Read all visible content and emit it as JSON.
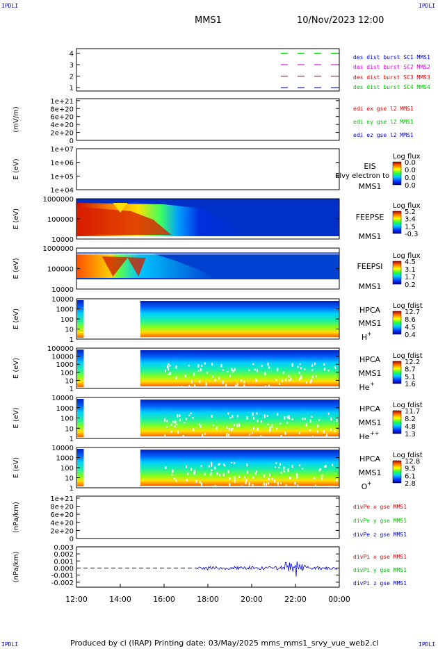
{
  "corner_left": "IPDLI",
  "corner_right": "IPDLI",
  "corner_bottom_left": "IPDLI",
  "corner_bottom_right": "IPDLI",
  "header": {
    "spacecraft": "MMS1",
    "datetime": "10/Nov/2023 12:00"
  },
  "footer": {
    "text": "Produced by cl (IRAP)   Printing date: 03/May/2025   mms_mms1_srvy_vue_web2.cl"
  },
  "colors": {
    "red": "#e00000",
    "green": "#00c000",
    "magenta": "#e000e0",
    "blue": "#0000e0",
    "black": "#000000"
  },
  "chart_data": [
    {
      "type": "line",
      "id": "des-dist-burst",
      "ylabel": "",
      "yticks": [
        "1",
        "2",
        "3",
        "4"
      ],
      "ylim": [
        0.7,
        4.4
      ],
      "series": [
        {
          "name": "des dist burst SC1 MMS1",
          "color": "#00c000",
          "y": 4,
          "x_start": "21:20",
          "x_end": "00:00"
        },
        {
          "name": "des dist burst SC2 MMS2",
          "color": "#e000e0",
          "y": 3,
          "x_start": "21:20",
          "x_end": "00:00"
        },
        {
          "name": "des dist burst SC3 MMS3",
          "color": "#e00000",
          "y": 2,
          "x_start": "21:20",
          "x_end": "00:00"
        },
        {
          "name": "des dist burst SC4 MMS4",
          "color": "#0000e0",
          "y": 1,
          "x_start": "21:20",
          "x_end": "00:00"
        }
      ]
    },
    {
      "type": "line",
      "id": "edi-e-gse",
      "ylabel": "(mV/m)",
      "yticks": [
        "0",
        "2e+20",
        "4e+20",
        "6e+20",
        "8e+20",
        "1e+21"
      ],
      "ylim": [
        0,
        1.05e+21
      ],
      "series": [
        {
          "name": "edi ex gse l2 MMS1",
          "color": "#e00000"
        },
        {
          "name": "edi ey gse l2 MMS1",
          "color": "#00c000"
        },
        {
          "name": "edi ez gse l2 MMS1",
          "color": "#0000e0"
        }
      ]
    },
    {
      "type": "heatmap",
      "id": "eis",
      "ylabel": "E (eV)",
      "yticks": [
        "1e+04",
        "1e+05",
        "1e+06",
        "1e+07"
      ],
      "labels": [
        "EIS",
        "MMS1"
      ],
      "overlay_label": "Elvy electron to",
      "colorbar": {
        "title": "Log flux",
        "ticks": [
          "0.0",
          "0.0",
          "0.0",
          "0.0"
        ]
      }
    },
    {
      "type": "heatmap",
      "id": "feepse",
      "ylabel": "E (eV)",
      "yticks": [
        "10000",
        "100000",
        "1000000"
      ],
      "labels": [
        "FEEPSE",
        "MMS1"
      ],
      "colorbar": {
        "title": "Log flux",
        "ticks": [
          "5.2",
          "3.4",
          "1.5",
          "-0.3"
        ]
      }
    },
    {
      "type": "heatmap",
      "id": "feepsi",
      "ylabel": "E (eV)",
      "yticks": [
        "10000",
        "100000",
        "1000000"
      ],
      "labels": [
        "FEEPSI",
        "MMS1"
      ],
      "colorbar": {
        "title": "Log flux",
        "ticks": [
          "4.5",
          "3.1",
          "1.7",
          "0.2"
        ]
      }
    },
    {
      "type": "heatmap",
      "id": "hpca-h",
      "ylabel": "E (eV)",
      "yticks": [
        "1",
        "10",
        "100",
        "1000",
        "10000"
      ],
      "labels": [
        "HPCA",
        "MMS1"
      ],
      "species": "H",
      "species_sup": "+",
      "colorbar": {
        "title": "Log fdist",
        "ticks": [
          "12.7",
          "8.6",
          "4.5",
          "0.4"
        ]
      }
    },
    {
      "type": "heatmap",
      "id": "hpca-he",
      "ylabel": "E (eV)",
      "yticks": [
        "1",
        "10",
        "100",
        "1000",
        "10000",
        "100000"
      ],
      "labels": [
        "HPCA",
        "MMS1"
      ],
      "species": "He",
      "species_sup": "+",
      "colorbar": {
        "title": "Log fdist",
        "ticks": [
          "12.2",
          "8.7",
          "5.1",
          "1.6"
        ]
      }
    },
    {
      "type": "heatmap",
      "id": "hpca-hepp",
      "ylabel": "E (eV)",
      "yticks": [
        "1",
        "10",
        "100",
        "1000",
        "10000"
      ],
      "labels": [
        "HPCA",
        "MMS1"
      ],
      "species": "He",
      "species_sup": "++",
      "colorbar": {
        "title": "Log fdist",
        "ticks": [
          "11.7",
          "8.2",
          "4.8",
          "1.3"
        ]
      }
    },
    {
      "type": "heatmap",
      "id": "hpca-o",
      "ylabel": "E (eV)",
      "yticks": [
        "1",
        "10",
        "100",
        "1000",
        "10000"
      ],
      "labels": [
        "HPCA",
        "MMS1"
      ],
      "species": "O",
      "species_sup": "+",
      "colorbar": {
        "title": "Log fdist",
        "ticks": [
          "12.8",
          "9.5",
          "6.1",
          "2.8"
        ]
      }
    },
    {
      "type": "line",
      "id": "divpe",
      "ylabel": "(nPa/km)",
      "yticks": [
        "0",
        "2e+20",
        "4e+20",
        "6e+20",
        "8e+20",
        "1e+21"
      ],
      "ylim": [
        0,
        1.05e+21
      ],
      "series": [
        {
          "name": "divPe x gse MMS1",
          "color": "#e00000"
        },
        {
          "name": "divPe y gse MMS1",
          "color": "#00c000"
        },
        {
          "name": "divPe z gse MMS1",
          "color": "#0000e0"
        }
      ]
    },
    {
      "type": "line",
      "id": "divpi",
      "ylabel": "(nPa/km)",
      "yticks": [
        "-0.002",
        "-0.001",
        "0.000",
        "0.001",
        "0.002",
        "0.003"
      ],
      "ylim": [
        -0.0027,
        0.003
      ],
      "series": [
        {
          "name": "divPi x gse MMS1",
          "color": "#e00000"
        },
        {
          "name": "divPi y gse MMS1",
          "color": "#00c000"
        },
        {
          "name": "divPi z gse MMS1",
          "color": "#0000e0"
        }
      ],
      "data_interval": [
        "17:30",
        "00:00"
      ]
    }
  ],
  "x_axis": {
    "ticks": [
      "12:00",
      "14:00",
      "16:00",
      "18:00",
      "20:00",
      "22:00",
      "00:00"
    ]
  }
}
